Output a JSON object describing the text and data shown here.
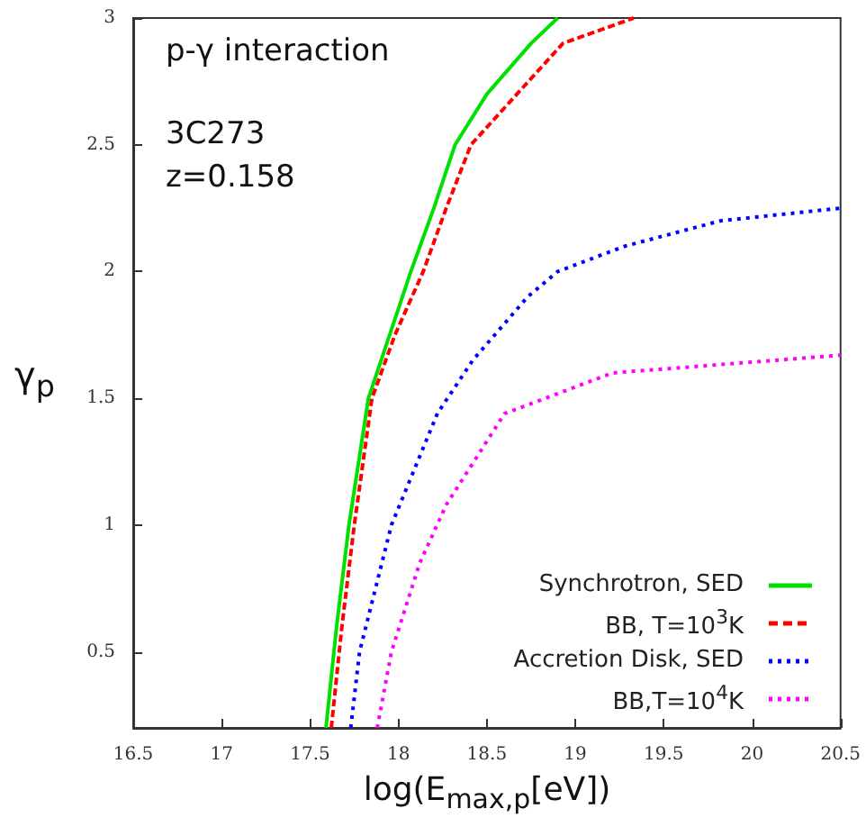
{
  "chart_data": {
    "type": "line",
    "xlabel": "log(E$_{max,p}$[eV])",
    "ylabel": "γ$_{p}$",
    "annotations": [
      "p-γ interaction",
      "3C273",
      "z=0.158"
    ],
    "xlim": [
      16.5,
      20.5
    ],
    "xticks": [
      16.5,
      17,
      17.5,
      18,
      18.5,
      19,
      19.5,
      20,
      20.5
    ],
    "ylim": [
      0.2,
      3
    ],
    "yticks": [
      0.5,
      1,
      1.5,
      2,
      2.5,
      3
    ],
    "grid": false,
    "legend": "bottom right",
    "marker": "none",
    "series": [
      {
        "name": "Synchrotron, SED",
        "color": "#00e000",
        "line_style": "solid",
        "x": [
          17.59,
          17.65,
          17.72,
          17.83,
          17.95,
          18.07,
          18.2,
          18.32,
          18.5,
          18.75,
          18.9
        ],
        "values": [
          0.2,
          0.6,
          1.0,
          1.5,
          1.75,
          2.0,
          2.25,
          2.5,
          2.7,
          2.9,
          3.0
        ]
      },
      {
        "name": "BB, T=10$^{3}$K",
        "color": "#ff0000",
        "line_style": "dashed",
        "x": [
          17.62,
          17.68,
          17.75,
          17.85,
          17.98,
          18.14,
          18.27,
          18.41,
          18.67,
          18.93,
          19.33
        ],
        "values": [
          0.2,
          0.6,
          1.0,
          1.5,
          1.75,
          2.0,
          2.25,
          2.5,
          2.7,
          2.9,
          3.0
        ]
      },
      {
        "name": "Accretion Disk, SED",
        "color": "#0000ff",
        "line_style": "dotted",
        "x": [
          17.73,
          17.78,
          17.96,
          18.22,
          18.42,
          18.73,
          18.9,
          19.28,
          19.82,
          20.5
        ],
        "values": [
          0.2,
          0.5,
          1.0,
          1.44,
          1.65,
          1.9,
          2.0,
          2.1,
          2.2,
          2.25
        ]
      },
      {
        "name": "BB,T=10$^{4}$K",
        "color": "#ff00ff",
        "line_style": "dotted",
        "x": [
          17.88,
          17.96,
          18.12,
          18.27,
          18.6,
          18.83,
          19.21,
          20.5
        ],
        "values": [
          0.2,
          0.5,
          0.85,
          1.08,
          1.44,
          1.5,
          1.6,
          1.67
        ]
      }
    ]
  }
}
